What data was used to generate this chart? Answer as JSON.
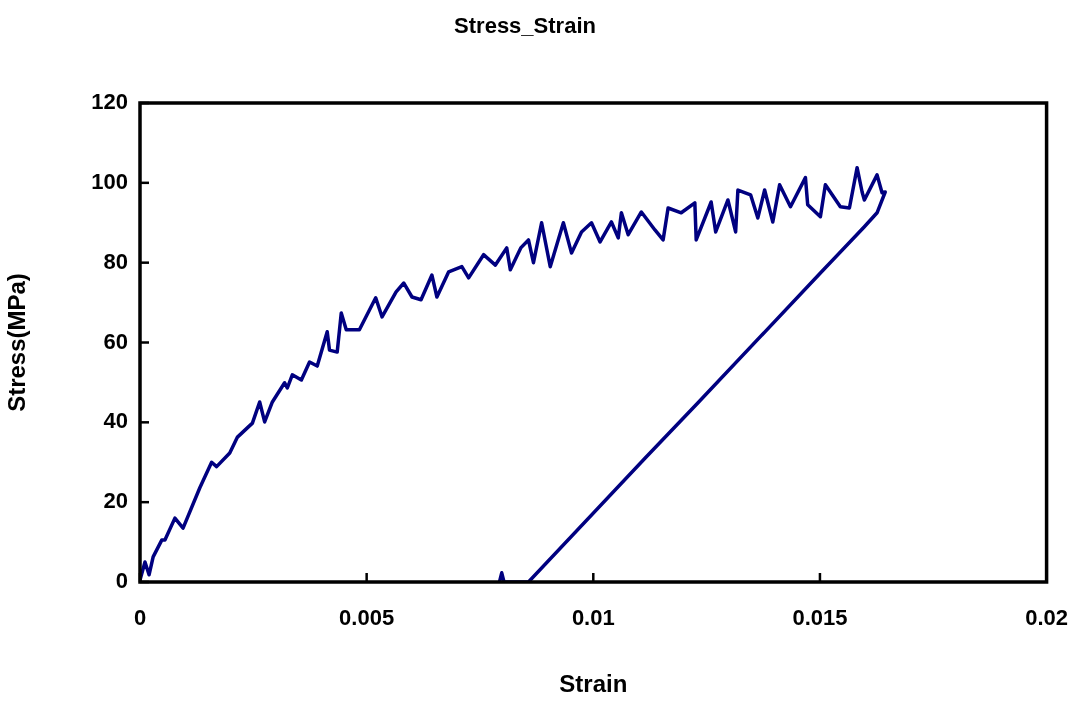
{
  "chart_data": {
    "type": "line",
    "title": "Stress_Strain",
    "xlabel": "Strain",
    "ylabel": "Stress(MPa)",
    "xlim": [
      0,
      0.02
    ],
    "xticks": [
      0,
      0.005,
      0.01,
      0.015,
      0.02
    ],
    "ylim": [
      0,
      120
    ],
    "yticks": [
      0,
      20,
      40,
      60,
      80,
      100,
      120
    ],
    "grid": false,
    "legend": false,
    "marker": "none",
    "line_style": "solid",
    "series": [
      {
        "color": "#000080",
        "x": [
          0,
          0.00011,
          0.0002,
          0.00029,
          0.00048,
          0.00055,
          0.00077,
          0.00095,
          0.00132,
          0.00158,
          0.00169,
          0.00198,
          0.00215,
          0.00248,
          0.00264,
          0.00275,
          0.00292,
          0.00319,
          0.00325,
          0.00336,
          0.00356,
          0.00374,
          0.00391,
          0.00413,
          0.00418,
          0.00435,
          0.00444,
          0.00455,
          0.00484,
          0.0052,
          0.00534,
          0.00565,
          0.00582,
          0.006,
          0.0062,
          0.00644,
          0.00655,
          0.00681,
          0.0071,
          0.00725,
          0.00758,
          0.00784,
          0.00809,
          0.00817,
          0.0084,
          0.00857,
          0.00868,
          0.00886,
          0.00905,
          0.00934,
          0.00952,
          0.00974,
          0.00996,
          0.01015,
          0.0104,
          0.01055,
          0.01062,
          0.01077,
          0.01106,
          0.01136,
          0.01154,
          0.01165,
          0.01194,
          0.01224,
          0.01227,
          0.0126,
          0.0127,
          0.01297,
          0.01314,
          0.01319,
          0.01347,
          0.01363,
          0.01378,
          0.01396,
          0.01411,
          0.01435,
          0.01468,
          0.01473,
          0.01501,
          0.01512,
          0.01545,
          0.01565,
          0.01582,
          0.01593,
          0.01598,
          0.01626,
          0.01637,
          0.01644,
          0.01626,
          0.01598,
          0.01501,
          0.01231,
          0.01114,
          0.00857,
          0.00803,
          0.00798,
          0.00793
        ],
        "values": [
          0.5,
          5,
          1.8,
          6.3,
          10.5,
          10.5,
          16,
          13.5,
          23.6,
          30,
          28.9,
          32.3,
          36.3,
          39.8,
          45.1,
          40.1,
          45.1,
          49.9,
          48.6,
          51.9,
          50.6,
          55.1,
          54.1,
          62.7,
          58.1,
          57.6,
          67.4,
          63.2,
          63.2,
          71.2,
          66.4,
          72.7,
          74.9,
          71.4,
          70.7,
          76.9,
          71.4,
          77.7,
          79,
          76.2,
          82,
          79.4,
          83.7,
          78.2,
          83.7,
          85.7,
          80,
          90,
          79,
          90,
          82.4,
          87.7,
          90,
          85.2,
          90.2,
          86.2,
          92.5,
          87,
          92.7,
          88.2,
          85.7,
          93.7,
          92.5,
          95,
          85.7,
          95.2,
          87.7,
          95.7,
          87.7,
          98.2,
          97,
          91.2,
          98.2,
          90.2,
          99.5,
          94,
          101.3,
          94.5,
          91.5,
          99.5,
          94,
          93.7,
          103.8,
          97.7,
          95.7,
          102,
          97.5,
          97.7,
          92.5,
          89,
          77.4,
          44.9,
          31,
          0,
          0,
          2.3,
          0
        ]
      }
    ]
  }
}
